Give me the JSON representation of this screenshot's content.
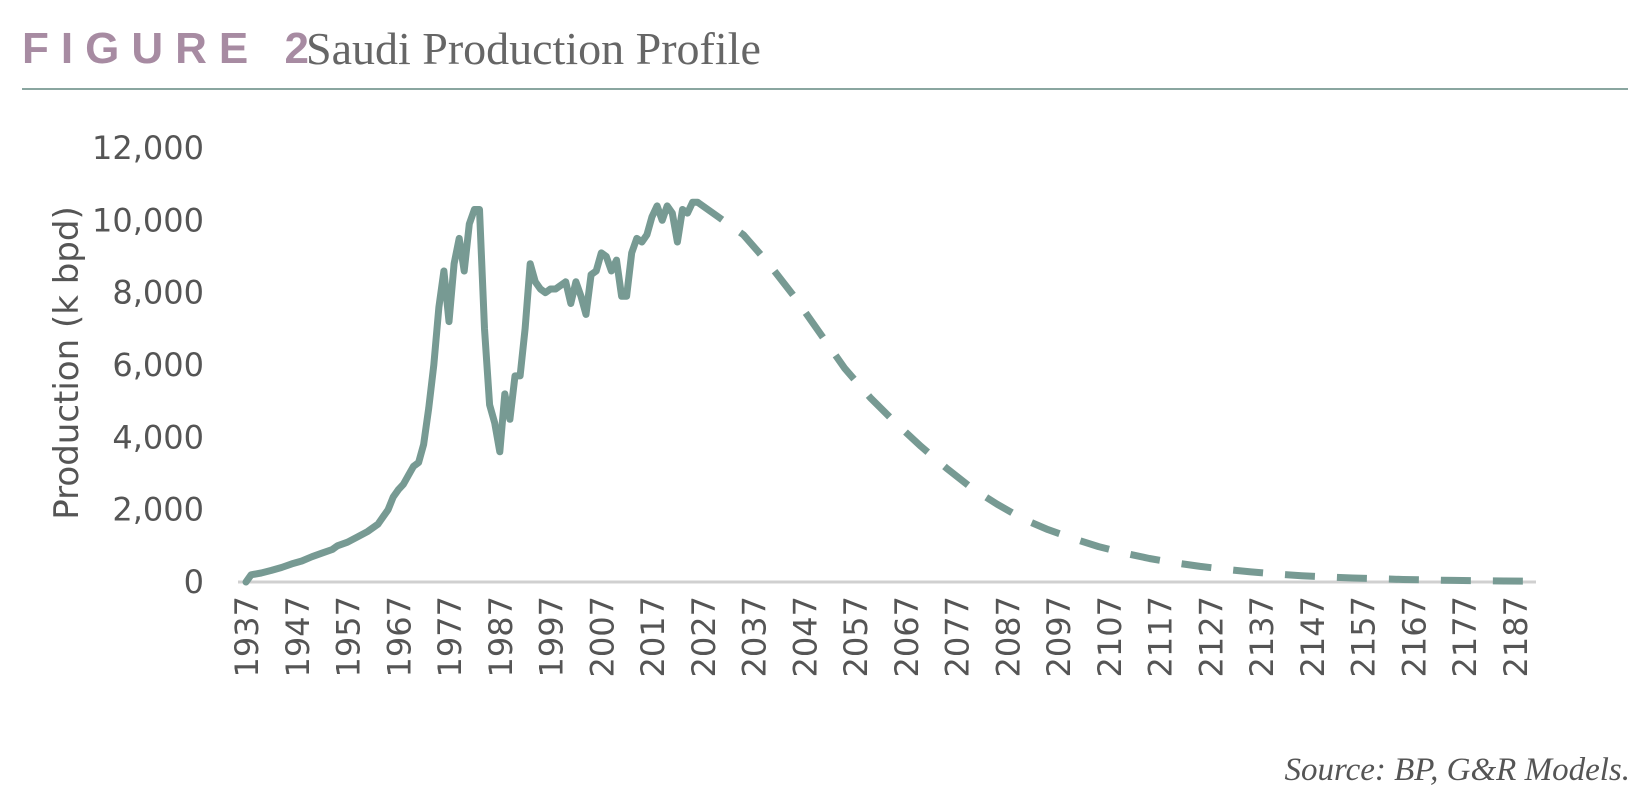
{
  "header": {
    "figure_label": "FIGURE 2",
    "title": "Saudi Production Profile"
  },
  "colors": {
    "label": "#a78ba2",
    "title": "#666666",
    "series": "#779a93",
    "rule": "#8aa6a0",
    "axis": "#d0d0d0",
    "text": "#555555"
  },
  "source": "Source: BP, G&R Models.",
  "chart_data": {
    "type": "line",
    "ylabel": "Production (k bpd)",
    "ylim": [
      0,
      12000
    ],
    "yticks": [
      "0",
      "2,000",
      "4,000",
      "6,000",
      "8,000",
      "10,000",
      "12,000"
    ],
    "xlim": [
      1937,
      2190
    ],
    "xticks": [
      "1937",
      "1947",
      "1957",
      "1967",
      "1977",
      "1987",
      "1997",
      "2007",
      "2017",
      "2027",
      "2037",
      "2047",
      "2057",
      "2067",
      "2077",
      "2087",
      "2097",
      "2107",
      "2117",
      "2127",
      "2137",
      "2147",
      "2157",
      "2167",
      "2177",
      "2187"
    ],
    "grid": false,
    "legend": "none",
    "series": [
      {
        "style": "solid",
        "points": [
          [
            1937,
            0
          ],
          [
            1938,
            200
          ],
          [
            1940,
            250
          ],
          [
            1942,
            320
          ],
          [
            1944,
            400
          ],
          [
            1946,
            500
          ],
          [
            1948,
            580
          ],
          [
            1950,
            700
          ],
          [
            1952,
            800
          ],
          [
            1954,
            900
          ],
          [
            1955,
            1000
          ],
          [
            1957,
            1100
          ],
          [
            1959,
            1250
          ],
          [
            1961,
            1400
          ],
          [
            1963,
            1600
          ],
          [
            1965,
            2000
          ],
          [
            1966,
            2350
          ],
          [
            1967,
            2550
          ],
          [
            1968,
            2700
          ],
          [
            1969,
            2950
          ],
          [
            1970,
            3200
          ],
          [
            1971,
            3300
          ],
          [
            1972,
            3800
          ],
          [
            1973,
            4800
          ],
          [
            1974,
            6000
          ],
          [
            1975,
            7600
          ],
          [
            1976,
            8600
          ],
          [
            1977,
            7200
          ],
          [
            1978,
            8800
          ],
          [
            1979,
            9500
          ],
          [
            1980,
            8600
          ],
          [
            1981,
            9900
          ],
          [
            1982,
            10300
          ],
          [
            1983,
            10300
          ],
          [
            1984,
            7000
          ],
          [
            1985,
            4900
          ],
          [
            1986,
            4400
          ],
          [
            1987,
            3600
          ],
          [
            1988,
            5200
          ],
          [
            1989,
            4500
          ],
          [
            1990,
            5700
          ],
          [
            1991,
            5700
          ],
          [
            1992,
            7000
          ],
          [
            1993,
            8800
          ],
          [
            1994,
            8300
          ],
          [
            1995,
            8100
          ],
          [
            1996,
            8000
          ],
          [
            1997,
            8100
          ],
          [
            1998,
            8100
          ],
          [
            1999,
            8200
          ],
          [
            2000,
            8300
          ],
          [
            2001,
            7700
          ],
          [
            2002,
            8300
          ],
          [
            2003,
            7900
          ],
          [
            2004,
            7400
          ],
          [
            2005,
            8500
          ],
          [
            2006,
            8600
          ],
          [
            2007,
            9100
          ],
          [
            2008,
            9000
          ],
          [
            2009,
            8600
          ],
          [
            2010,
            8900
          ],
          [
            2011,
            7900
          ],
          [
            2012,
            7900
          ],
          [
            2013,
            9100
          ],
          [
            2014,
            9500
          ],
          [
            2015,
            9400
          ],
          [
            2016,
            9600
          ],
          [
            2017,
            10100
          ],
          [
            2018,
            10400
          ],
          [
            2019,
            10000
          ],
          [
            2020,
            10400
          ],
          [
            2021,
            10200
          ],
          [
            2022,
            9400
          ],
          [
            2023,
            10300
          ],
          [
            2024,
            10200
          ],
          [
            2025,
            10500
          ],
          [
            2026,
            10500
          ]
        ]
      },
      {
        "style": "dashed",
        "points": [
          [
            2026,
            10500
          ],
          [
            2030,
            10100
          ],
          [
            2035,
            9600
          ],
          [
            2040,
            8800
          ],
          [
            2045,
            7900
          ],
          [
            2050,
            6900
          ],
          [
            2055,
            5900
          ],
          [
            2060,
            5100
          ],
          [
            2065,
            4400
          ],
          [
            2070,
            3750
          ],
          [
            2075,
            3150
          ],
          [
            2080,
            2600
          ],
          [
            2085,
            2150
          ],
          [
            2090,
            1750
          ],
          [
            2095,
            1450
          ],
          [
            2100,
            1200
          ],
          [
            2105,
            980
          ],
          [
            2110,
            800
          ],
          [
            2115,
            650
          ],
          [
            2120,
            530
          ],
          [
            2125,
            430
          ],
          [
            2130,
            350
          ],
          [
            2135,
            280
          ],
          [
            2140,
            220
          ],
          [
            2145,
            175
          ],
          [
            2150,
            140
          ],
          [
            2155,
            110
          ],
          [
            2160,
            90
          ],
          [
            2165,
            70
          ],
          [
            2170,
            55
          ],
          [
            2175,
            45
          ],
          [
            2180,
            35
          ],
          [
            2185,
            28
          ],
          [
            2190,
            22
          ]
        ]
      }
    ]
  }
}
